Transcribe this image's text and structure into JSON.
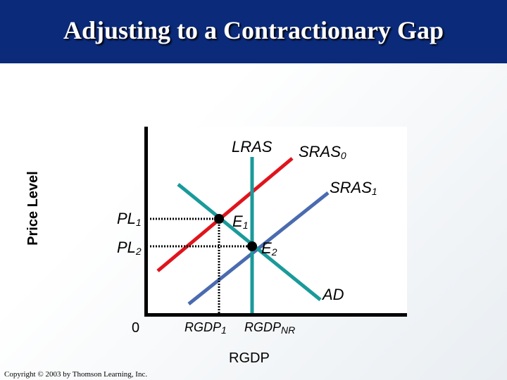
{
  "title": "Adjusting to a Contractionary Gap",
  "labels": {
    "lras": "LRAS",
    "sras0_base": "SRAS",
    "sras0_sub": "0",
    "sras1_base": "SRAS",
    "sras1_sub": "1",
    "pl1_base": "PL",
    "pl1_sub": "1",
    "pl2_base": "PL",
    "pl2_sub": "2",
    "e1_base": "E",
    "e1_sub": "1",
    "e2_base": "E",
    "e2_sub": "2",
    "ad": "AD",
    "origin": "0",
    "rgdp1_base": "RGDP",
    "rgdp1_sub": "1",
    "rgdpnr_base": "RGDP",
    "rgdpnr_sub": "NR"
  },
  "axis": {
    "y_title": "Price Level",
    "x_title": "RGDP"
  },
  "colors": {
    "header": "#0b2a7a",
    "sras0": "#e0141c",
    "sras1": "#4a6bb0",
    "ad": "#1a9a9a",
    "lras": "#1a9a9a"
  },
  "copyright": "Copyright © 2003 by Thomson Learning, Inc."
}
